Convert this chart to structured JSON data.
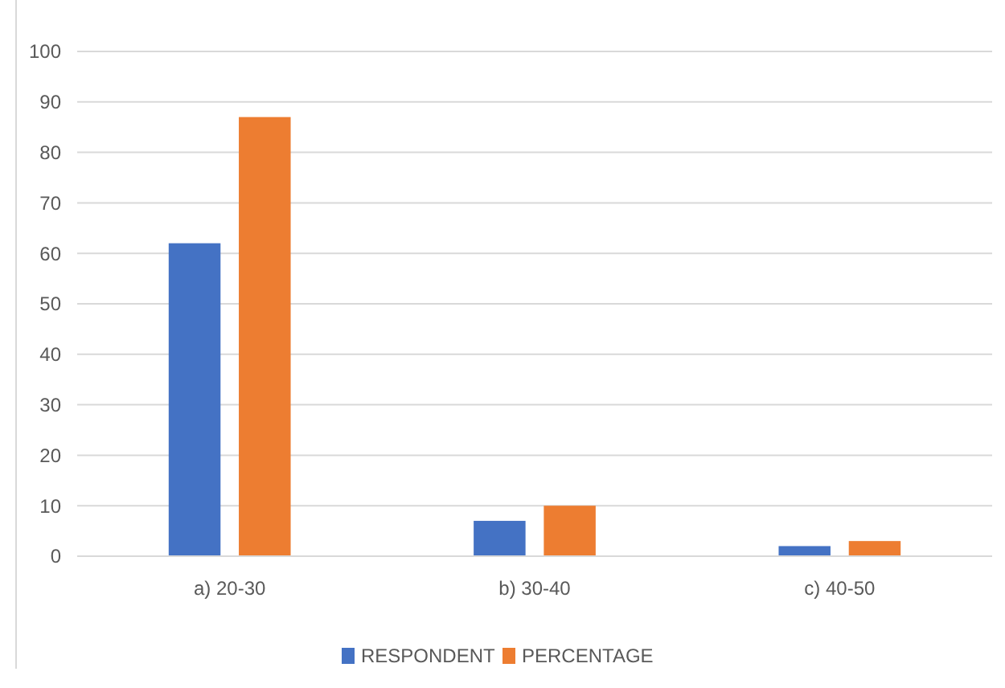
{
  "chart_data": {
    "type": "bar",
    "categories": [
      "a) 20-30",
      "b) 30-40",
      "c) 40-50"
    ],
    "series": [
      {
        "name": "RESPONDENT",
        "color": "#4472c4",
        "values": [
          62,
          7,
          2
        ]
      },
      {
        "name": "PERCENTAGE",
        "color": "#ed7d31",
        "values": [
          87,
          10,
          3
        ]
      }
    ],
    "ylim": [
      0,
      100
    ],
    "yticks": [
      0,
      10,
      20,
      30,
      40,
      50,
      60,
      70,
      80,
      90,
      100
    ],
    "grid": "y",
    "legend": "bottom"
  }
}
